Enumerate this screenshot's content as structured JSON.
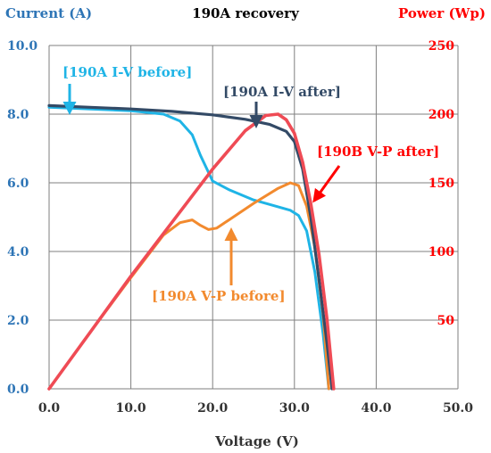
{
  "chart_data": {
    "type": "line",
    "title": "190A recovery",
    "xlabel": "Voltage (V)",
    "ylabel_left": "Current (A)",
    "ylabel_right": "Power (Wp)",
    "xlim": [
      0,
      50
    ],
    "ylim_left": [
      0,
      10
    ],
    "ylim_right": [
      0,
      250
    ],
    "x_ticks": [
      "0.0",
      "10.0",
      "20.0",
      "30.0",
      "40.0",
      "50.0"
    ],
    "y_left_ticks": [
      "0.0",
      "2.0",
      "4.0",
      "6.0",
      "8.0",
      "10.0"
    ],
    "y_right_ticks": [
      "50",
      "100",
      "150",
      "200",
      "250"
    ],
    "grid": true,
    "colors": {
      "left_axis": "#2e75b6",
      "right_axis": "#ff0000",
      "iv_before": "#1fb4e6",
      "iv_after": "#334a66",
      "vp_after": "#ef4b55",
      "vp_before": "#f28a2e"
    },
    "series": [
      {
        "name": "[190A I-V before]",
        "axis": "left",
        "x": [
          0,
          5,
          10,
          14,
          16,
          17.5,
          18.5,
          20,
          22,
          25,
          28,
          29.5,
          30.5,
          31.5,
          32.5,
          33.5,
          34.2
        ],
        "y": [
          8.2,
          8.15,
          8.1,
          8.0,
          7.8,
          7.4,
          6.8,
          6.05,
          5.8,
          5.5,
          5.3,
          5.2,
          5.05,
          4.6,
          3.4,
          1.6,
          0
        ]
      },
      {
        "name": "[190A I-V after]",
        "axis": "left",
        "x": [
          0,
          5,
          10,
          15,
          20,
          24,
          27,
          29,
          30,
          31,
          32,
          33,
          34,
          34.6
        ],
        "y": [
          8.25,
          8.2,
          8.15,
          8.08,
          7.98,
          7.85,
          7.7,
          7.5,
          7.2,
          6.4,
          5.0,
          3.2,
          1.3,
          0
        ]
      },
      {
        "name": "[190B V-P after]",
        "axis": "right",
        "x": [
          0,
          5,
          10,
          15,
          20,
          24,
          26.5,
          28,
          29,
          30,
          31,
          32,
          33,
          34,
          34.8
        ],
        "y": [
          0,
          41,
          82,
          121,
          160,
          188,
          199,
          200,
          196,
          186,
          165,
          135,
          98,
          50,
          0
        ]
      },
      {
        "name": "[190A V-P before]",
        "axis": "right",
        "x": [
          0,
          5,
          10,
          14,
          16,
          17.5,
          18.5,
          19.5,
          20.5,
          22,
          25,
          28,
          29.5,
          30.5,
          31.5,
          32.5,
          33.5,
          34.2
        ],
        "y": [
          0,
          41,
          81,
          112,
          121,
          123,
          119,
          116,
          117,
          123,
          135,
          146,
          150,
          148,
          133,
          103,
          54,
          0
        ]
      }
    ],
    "annotations": [
      {
        "text": "[190A I-V before]",
        "color": "#1fb4e6"
      },
      {
        "text": "[190A I-V after]",
        "color": "#334a66"
      },
      {
        "text": "[190B V-P after]",
        "color": "#ff0000"
      },
      {
        "text": "[190A V-P before]",
        "color": "#f28a2e"
      }
    ]
  }
}
